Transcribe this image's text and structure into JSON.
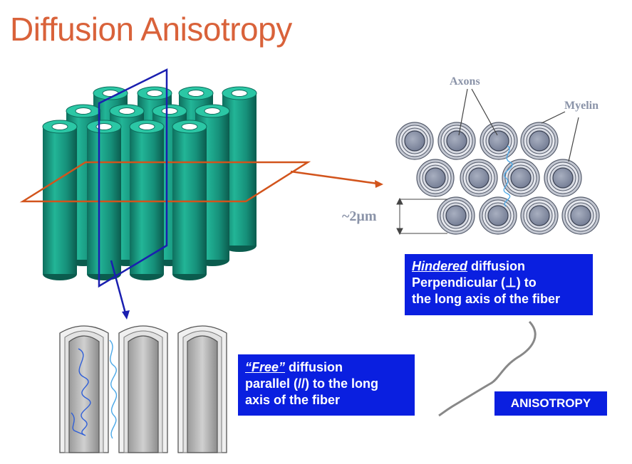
{
  "title": "Diffusion Anisotropy",
  "labels": {
    "axons": "Axons",
    "myelin": "Myelin",
    "scale": "~2µm"
  },
  "hindered_box": {
    "emph": "Hindered",
    "line1_rest": " diffusion",
    "line2": "Perpendicular (⊥) to",
    "line3": "the long axis of the fiber"
  },
  "free_box": {
    "emph": "“Free”",
    "line1_rest": " diffusion",
    "line2": "parallel (//) to the long",
    "line3": "axis of the fiber"
  },
  "anisotropy_label": "ANISOTROPY",
  "colors": {
    "title": "#d9623a",
    "box": "#0a1fe0",
    "cylinder": "#1a9e86",
    "plane_horizontal": "#d2541c",
    "plane_vertical": "#1a1fb0",
    "trace": "#4aa8e8"
  }
}
